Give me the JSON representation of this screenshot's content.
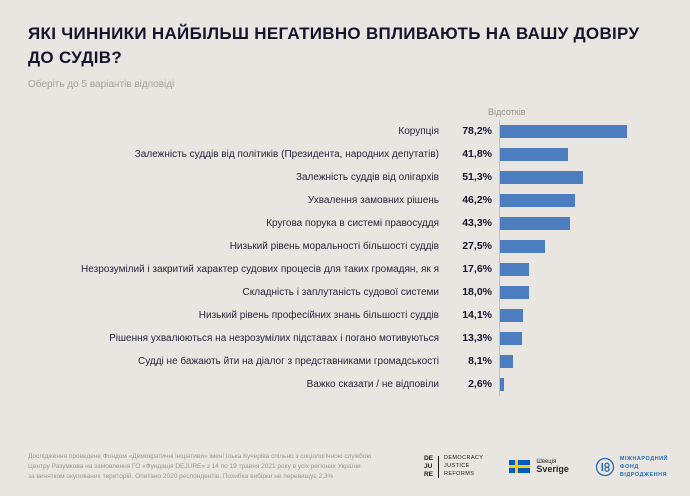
{
  "page": {
    "title": "ЯКІ ЧИННИКИ НАЙБІЛЬШ НЕГАТИВНО ВПЛИВАЮТЬ НА ВАШУ ДОВІРУ ДО СУДІВ?",
    "subtitle": "Оберіть до 5 варіантів відповіді"
  },
  "chart_data": {
    "type": "bar",
    "orientation": "horizontal",
    "value_axis_label": "Відсотків",
    "xlim": [
      0,
      100
    ],
    "grid": false,
    "legend": false,
    "bar_color": "#4c7dbf",
    "categories": [
      "Корупція",
      "Залежність суддів від політиків (Президента, народних депутатів)",
      "Залежність суддів від олігархів",
      "Ухвалення замовних рішень",
      "Кругова порука в системі правосуддя",
      "Низький рівень моральності більшості суддів",
      "Незрозумілий і закритий характер судових процесів для таких громадян, як я",
      "Складність і заплутаність судової системи",
      "Низький рівень професійних знань більшості суддів",
      "Рішення ухвалюються на незрозумілих підставах і погано мотивуються",
      "Судді не бажають йти на діалог з представниками громадськості",
      "Важко сказати / не відповіли"
    ],
    "values": [
      78.2,
      41.8,
      51.3,
      46.2,
      43.3,
      27.5,
      17.6,
      18.0,
      14.1,
      13.3,
      8.1,
      2.6
    ],
    "value_labels": [
      "78,2%",
      "41,8%",
      "51,3%",
      "46,2%",
      "43,3%",
      "27,5%",
      "17,6%",
      "18,0%",
      "14,1%",
      "13,3%",
      "8,1%",
      "2,6%"
    ]
  },
  "footer": {
    "source_lines": [
      "Дослідження проведене Фондом «Демократичні ініціативи» імені Ілька Кучеріва спільно з соціологічною службою",
      "Центру Разумкова на замовлення ГО «Фундація DEJURE» з 14 по 19 травня 2021 року в усіх регіонах України",
      "за винятком окупованих територій. Опитано 2020 респондентів. Похибка вибірки не перевищує 2,3%"
    ],
    "logos": {
      "dejure": {
        "letters": [
          "DE",
          "JU",
          "RE"
        ],
        "words": [
          "DEMOCRACY",
          "JUSTICE",
          "REFORMS"
        ]
      },
      "sweden": {
        "line1": "Швеція",
        "line2": "Sverige"
      },
      "irf": {
        "lines": [
          "МІЖНАРОДНИЙ",
          "ФОНД",
          "ВІДРОДЖЕННЯ"
        ]
      }
    }
  }
}
